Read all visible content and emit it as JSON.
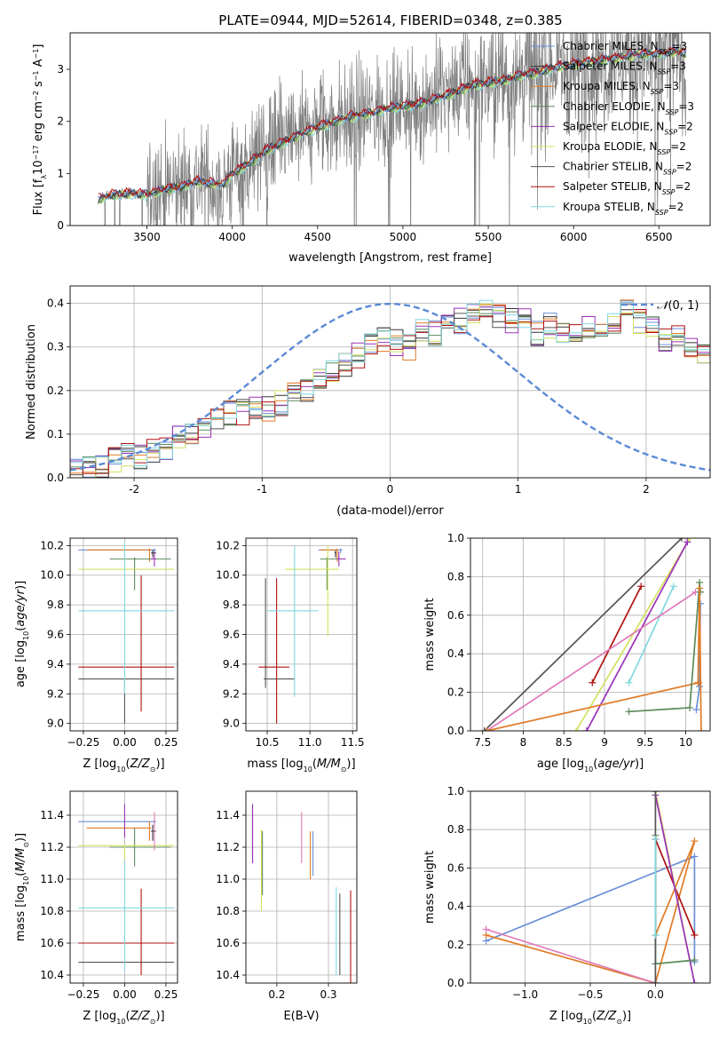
{
  "figure_title": "PLATE=0944, MJD=52614, FIBERID=0348, z=0.385",
  "palette": {
    "chabrier_miles": "#6a8fd8",
    "salpeter_miles": "#333333",
    "kroupa_miles": "#e07b26",
    "chabrier_elodie": "#5c8a5c",
    "salpeter_elodie": "#9a32b8",
    "kroupa_elodie": "#d4e060",
    "chabrier_stelib": "#555555",
    "salpeter_stelib": "#b01010",
    "kroupa_stelib": "#80d8e0",
    "pink": "#e07ab8",
    "data": "#808080",
    "normal": "#5b8ad6"
  },
  "legend_entries": [
    "Chabrier MILES, N_SSP=3",
    "Salpeter MILES, N_SSP=3",
    "Kroupa MILES, N_SSP=3",
    "Chabrier ELODIE, N_SSP=3",
    "Salpeter ELODIE, N_SSP=2",
    "Kroupa ELODIE, N_SSP=2",
    "Chabrier STELIB, N_SSP=2",
    "Salpeter STELIB, N_SSP=2",
    "Kroupa STELIB, N_SSP=2"
  ],
  "chart_data": [
    {
      "id": "spectrum",
      "type": "line",
      "xlabel": "wavelength [Angstrom, rest frame]",
      "ylabel": "Flux [f_λ 10^-17 erg cm^-2 s^-1 A^-1]",
      "xlim": [
        3050,
        6800
      ],
      "ylim": [
        0,
        3.7
      ],
      "xticks": [
        3500,
        4000,
        4500,
        5000,
        5500,
        6000,
        6500
      ],
      "yticks": [
        0,
        1,
        2,
        3
      ],
      "legend_loc": "upper right",
      "model_knots": {
        "x": [
          3210,
          3300,
          3400,
          3500,
          3600,
          3700,
          3800,
          3900,
          3950,
          4000,
          4100,
          4200,
          4300,
          4400,
          4500,
          4600,
          4700,
          4800,
          4900,
          5000,
          5100,
          5200,
          5300,
          5400,
          5500,
          5600,
          5700,
          5800,
          5900,
          6000,
          6100,
          6200,
          6300,
          6400,
          6500,
          6600,
          6660
        ],
        "y": [
          0.5,
          0.6,
          0.62,
          0.6,
          0.7,
          0.75,
          0.85,
          0.8,
          0.8,
          1.0,
          1.2,
          1.45,
          1.6,
          1.75,
          1.9,
          2.0,
          2.1,
          2.15,
          2.25,
          2.3,
          2.35,
          2.45,
          2.55,
          2.7,
          2.75,
          2.8,
          2.9,
          2.95,
          3.05,
          3.1,
          3.15,
          3.2,
          3.25,
          3.3,
          3.3,
          3.35,
          3.3
        ]
      }
    },
    {
      "id": "residual_hist",
      "type": "step",
      "xlabel": "(data-model)/error",
      "ylabel": "Normed distribution",
      "xlim": [
        -2.5,
        2.5
      ],
      "ylim": [
        0,
        0.44
      ],
      "xticks": [
        -2,
        -1,
        0,
        1,
        2
      ],
      "yticks": [
        0.0,
        0.1,
        0.2,
        0.3,
        0.4
      ],
      "legend_label": "N(0,1)",
      "legend_loc": "upper right",
      "bin_width": 0.1,
      "bin_start": -2.5,
      "base_values": [
        0.02,
        0.02,
        0.03,
        0.04,
        0.05,
        0.05,
        0.06,
        0.07,
        0.09,
        0.1,
        0.12,
        0.14,
        0.15,
        0.15,
        0.16,
        0.16,
        0.17,
        0.19,
        0.2,
        0.22,
        0.24,
        0.26,
        0.28,
        0.3,
        0.32,
        0.31,
        0.3,
        0.34,
        0.33,
        0.35,
        0.36,
        0.37,
        0.38,
        0.37,
        0.36,
        0.37,
        0.33,
        0.35,
        0.34,
        0.33,
        0.35,
        0.33,
        0.36,
        0.38,
        0.36,
        0.34,
        0.32,
        0.33,
        0.3,
        0.28,
        0.27,
        0.26,
        0.24,
        0.23,
        0.22,
        0.21,
        0.22,
        0.21,
        0.2,
        0.2,
        0.22,
        0.21,
        0.19,
        0.18,
        0.15,
        0.13,
        0.12,
        0.11,
        0.1,
        0.09,
        0.08,
        0.07,
        0.06,
        0.06,
        0.05
      ]
    },
    {
      "id": "age_vs_Z",
      "type": "errorbar",
      "xlabel": "Z [log10(Z/Z⊙)]",
      "ylabel": "age  [log10(age/yr)]",
      "xlim": [
        -0.33,
        0.32
      ],
      "ylim": [
        8.95,
        10.25
      ],
      "xticks": [
        -0.25,
        0.0,
        0.25
      ],
      "ytick_labels": [
        "9.0",
        "9.2",
        "9.4",
        "9.6",
        "9.8",
        "10.0",
        "10.2"
      ],
      "points": [
        {
          "x": 0.18,
          "xerr": [
            0.46,
            0.01
          ],
          "y": 10.17,
          "yerr": [
            0.02,
            0.01
          ],
          "c": "chabrier_miles"
        },
        {
          "x": 0.17,
          "xerr": [
            0.01,
            0.02
          ],
          "y": 10.15,
          "yerr": [
            0.03,
            0.02
          ],
          "c": "salpeter_miles"
        },
        {
          "x": 0.15,
          "xerr": [
            0.38,
            0.01
          ],
          "y": 10.17,
          "yerr": [
            0.08,
            0.01
          ],
          "c": "kroupa_miles"
        },
        {
          "x": 0.06,
          "xerr": [
            0.15,
            0.22
          ],
          "y": 10.11,
          "yerr": [
            0.21,
            0.01
          ],
          "c": "chabrier_elodie"
        },
        {
          "x": 0.18,
          "xerr": [
            0.02,
            0.01
          ],
          "y": 10.11,
          "yerr": [
            0.05,
            0.05
          ],
          "c": "salpeter_elodie"
        },
        {
          "x": 0.0,
          "xerr": [
            0.28,
            0.3
          ],
          "y": 10.04,
          "yerr": [
            0.0,
            0.16
          ],
          "c": "kroupa_elodie"
        },
        {
          "x": 0.0,
          "xerr": [
            0.28,
            0.3
          ],
          "y": 9.3,
          "yerr": [
            0.3,
            0.0
          ],
          "c": "chabrier_stelib"
        },
        {
          "x": 0.1,
          "xerr": [
            0.38,
            0.2
          ],
          "y": 9.38,
          "yerr": [
            0.3,
            0.62
          ],
          "c": "salpeter_stelib"
        },
        {
          "x": 0.0,
          "xerr": [
            0.28,
            0.3
          ],
          "y": 9.76,
          "yerr": [
            0.56,
            0.46
          ],
          "c": "kroupa_stelib"
        }
      ]
    },
    {
      "id": "age_vs_mass",
      "type": "errorbar",
      "xlabel": "mass [log10(M/M⊙)]",
      "xlim": [
        10.25,
        11.55
      ],
      "ylim": [
        8.95,
        10.25
      ],
      "xticks": [
        10.5,
        11.0,
        11.5
      ],
      "ytick_labels": [
        "9.0",
        "9.2",
        "9.4",
        "9.6",
        "9.8",
        "10.0",
        "10.2"
      ],
      "points": [
        {
          "x": 11.36,
          "xerr": [
            0.26,
            0.02
          ],
          "y": 10.17,
          "yerr": [
            0.02,
            0.01
          ],
          "c": "chabrier_miles"
        },
        {
          "x": 11.3,
          "xerr": [
            0.01,
            0.01
          ],
          "y": 10.15,
          "yerr": [
            0.03,
            0.02
          ],
          "c": "salpeter_miles"
        },
        {
          "x": 11.32,
          "xerr": [
            0.2,
            0.01
          ],
          "y": 10.17,
          "yerr": [
            0.08,
            0.01
          ],
          "c": "kroupa_miles"
        },
        {
          "x": 11.2,
          "xerr": [
            0.08,
            0.15
          ],
          "y": 10.11,
          "yerr": [
            0.21,
            0.01
          ],
          "c": "chabrier_elodie"
        },
        {
          "x": 11.34,
          "xerr": [
            0.02,
            0.08
          ],
          "y": 10.11,
          "yerr": [
            0.05,
            0.05
          ],
          "c": "salpeter_elodie"
        },
        {
          "x": 11.21,
          "xerr": [
            0.5,
            0.13
          ],
          "y": 10.04,
          "yerr": [
            0.45,
            0.16
          ],
          "c": "kroupa_elodie"
        },
        {
          "x": 10.48,
          "xerr": [
            0.02,
            0.34
          ],
          "y": 9.3,
          "yerr": [
            0.06,
            0.68
          ],
          "c": "chabrier_stelib"
        },
        {
          "x": 10.61,
          "xerr": [
            0.21,
            0.15
          ],
          "y": 9.38,
          "yerr": [
            0.38,
            0.6
          ],
          "c": "salpeter_stelib"
        },
        {
          "x": 10.82,
          "xerr": [
            0.32,
            0.28
          ],
          "y": 9.76,
          "yerr": [
            0.58,
            0.44
          ],
          "c": "kroupa_stelib"
        }
      ]
    },
    {
      "id": "weight_vs_age",
      "type": "line",
      "xlabel": "age  [log10(age/yr)]",
      "ylabel": "mass weight",
      "xlim": [
        7.35,
        10.3
      ],
      "ylim": [
        0.0,
        1.0
      ],
      "xticks": [
        7.5,
        8.0,
        8.5,
        9.0,
        9.5,
        10.0
      ],
      "ytick_labels": [
        "0.0",
        "0.2",
        "0.4",
        "0.6",
        "0.8",
        "1.0"
      ],
      "series": [
        {
          "c": "chabrier_stelib",
          "x": [
            7.52,
            9.95
          ],
          "y": [
            0.0,
            1.0
          ]
        },
        {
          "c": "salpeter_stelib",
          "x": [
            8.85,
            9.45
          ],
          "y": [
            0.25,
            0.75
          ]
        },
        {
          "c": "kroupa_elodie",
          "x": [
            8.65,
            10.05
          ],
          "y": [
            0.0,
            1.0
          ]
        },
        {
          "c": "salpeter_elodie",
          "x": [
            8.78,
            10.02
          ],
          "y": [
            0.0,
            0.98
          ]
        },
        {
          "c": "kroupa_stelib",
          "x": [
            9.3,
            9.85
          ],
          "y": [
            0.25,
            0.75
          ]
        },
        {
          "c": "pink",
          "x": [
            7.55,
            10.12
          ],
          "y": [
            0.0,
            0.72
          ]
        },
        {
          "c": "kroupa_miles",
          "x": [
            7.55,
            10.16
          ],
          "y": [
            0.0,
            0.25
          ]
        },
        {
          "c": "chabrier_miles",
          "x": [
            10.13,
            10.17,
            10.18
          ],
          "y": [
            0.11,
            0.23,
            0.66
          ]
        },
        {
          "c": "chabrier_elodie",
          "x": [
            9.3,
            10.05,
            10.17,
            10.18
          ],
          "y": [
            0.1,
            0.12,
            0.77,
            0.72
          ]
        },
        {
          "c": "kroupa_miles",
          "x": [
            10.15,
            10.17,
            10.19
          ],
          "y": [
            0.25,
            0.74,
            0.0
          ]
        }
      ]
    },
    {
      "id": "mass_vs_Z",
      "type": "errorbar",
      "xlabel": "Z [log10(Z/Z⊙)]",
      "ylabel": "mass [log10(M/M⊙)]",
      "xlim": [
        -0.33,
        0.32
      ],
      "ylim": [
        10.35,
        11.55
      ],
      "xticks": [
        -0.25,
        0.0,
        0.25
      ],
      "ytick_labels": [
        "10.4",
        "10.6",
        "10.8",
        "11.0",
        "11.2",
        "11.4"
      ],
      "points": [
        {
          "x": 0.18,
          "xerr": [
            0.46,
            0.01
          ],
          "y": 11.36,
          "yerr": [
            0.02,
            0.02
          ],
          "c": "chabrier_miles"
        },
        {
          "x": 0.17,
          "xerr": [
            0.01,
            0.02
          ],
          "y": 11.3,
          "yerr": [
            0.06,
            0.04
          ],
          "c": "salpeter_miles"
        },
        {
          "x": 0.15,
          "xerr": [
            0.38,
            0.01
          ],
          "y": 11.32,
          "yerr": [
            0.08,
            0.04
          ],
          "c": "kroupa_miles"
        },
        {
          "x": 0.06,
          "xerr": [
            0.15,
            0.22
          ],
          "y": 11.2,
          "yerr": [
            0.12,
            0.12
          ],
          "c": "chabrier_elodie"
        },
        {
          "x": 0.0,
          "xerr": [
            0.0,
            0.0
          ],
          "y": 11.34,
          "yerr": [
            0.08,
            0.13
          ],
          "c": "salpeter_elodie"
        },
        {
          "x": 0.0,
          "xerr": [
            0.28,
            0.3
          ],
          "y": 11.21,
          "yerr": [
            0.3,
            0.0
          ],
          "c": "kroupa_elodie"
        },
        {
          "x": 0.0,
          "xerr": [
            0.28,
            0.3
          ],
          "y": 10.48,
          "yerr": [
            0.0,
            0.0
          ],
          "c": "chabrier_stelib"
        },
        {
          "x": 0.1,
          "xerr": [
            0.38,
            0.2
          ],
          "y": 10.6,
          "yerr": [
            0.2,
            0.34
          ],
          "c": "salpeter_stelib"
        },
        {
          "x": 0.0,
          "xerr": [
            0.28,
            0.3
          ],
          "y": 10.82,
          "yerr": [
            0.4,
            0.3
          ],
          "c": "kroupa_stelib"
        },
        {
          "x": 0.18,
          "xerr": [
            0.0,
            0.0
          ],
          "y": 11.3,
          "yerr": [
            0.12,
            0.12
          ],
          "c": "pink"
        }
      ]
    },
    {
      "id": "mass_vs_ebv",
      "type": "errorbar",
      "xlabel": "E(B-V)",
      "xlim": [
        0.14,
        0.355
      ],
      "ylim": [
        10.35,
        11.55
      ],
      "xticks": [
        0.2,
        0.3
      ],
      "ytick_labels": [
        "10.4",
        "10.6",
        "10.8",
        "11.0",
        "11.2",
        "11.4"
      ],
      "points": [
        {
          "x": 0.153,
          "y": 11.28,
          "yerr": [
            0.18,
            0.19
          ],
          "c": "salpeter_elodie"
        },
        {
          "x": 0.17,
          "y": 11.05,
          "yerr": [
            0.25,
            0.26
          ],
          "c": "kroupa_elodie"
        },
        {
          "x": 0.172,
          "y": 11.1,
          "yerr": [
            0.2,
            0.2
          ],
          "c": "chabrier_elodie"
        },
        {
          "x": 0.248,
          "y": 11.2,
          "yerr": [
            0.1,
            0.22
          ],
          "c": "pink"
        },
        {
          "x": 0.265,
          "y": 11.15,
          "yerr": [
            0.15,
            0.15
          ],
          "c": "kroupa_miles"
        },
        {
          "x": 0.27,
          "y": 11.2,
          "yerr": [
            0.18,
            0.1
          ],
          "c": "chabrier_miles"
        },
        {
          "x": 0.315,
          "y": 10.85,
          "yerr": [
            0.45,
            0.1
          ],
          "c": "kroupa_stelib"
        },
        {
          "x": 0.322,
          "y": 10.63,
          "yerr": [
            0.23,
            0.28
          ],
          "c": "chabrier_stelib"
        },
        {
          "x": 0.343,
          "y": 10.6,
          "yerr": [
            0.25,
            0.33
          ],
          "c": "salpeter_stelib"
        }
      ]
    },
    {
      "id": "weight_vs_Z",
      "type": "line",
      "xlabel": "Z [log10(Z/Z⊙)]",
      "ylabel": "mass weight",
      "xlim": [
        -1.42,
        0.42
      ],
      "ylim": [
        0.0,
        1.0
      ],
      "xticks": [
        -1.0,
        -0.5,
        0.0
      ],
      "ytick_labels": [
        "0.0",
        "0.2",
        "0.4",
        "0.6",
        "0.8",
        "1.0"
      ],
      "series": [
        {
          "c": "chabrier_miles",
          "x": [
            -1.3,
            0.3,
            0.3
          ],
          "y": [
            0.22,
            0.66,
            0.11
          ]
        },
        {
          "c": "kroupa_miles",
          "x": [
            -1.3,
            0.0,
            0.3,
            0.0
          ],
          "y": [
            0.25,
            0.0,
            0.74,
            0.25
          ]
        },
        {
          "c": "pink",
          "x": [
            -1.3,
            0.0
          ],
          "y": [
            0.28,
            0.0
          ]
        },
        {
          "c": "salpeter_stelib",
          "x": [
            0.0,
            0.3
          ],
          "y": [
            0.75,
            0.25
          ]
        },
        {
          "c": "kroupa_elodie",
          "x": [
            0.0,
            0.3
          ],
          "y": [
            1.0,
            0.0
          ]
        },
        {
          "c": "salpeter_elodie",
          "x": [
            0.0,
            0.3
          ],
          "y": [
            0.98,
            0.0
          ]
        },
        {
          "c": "chabrier_elodie",
          "x": [
            0.0,
            0.0,
            0.3
          ],
          "y": [
            0.77,
            0.1,
            0.12
          ]
        },
        {
          "c": "chabrier_stelib",
          "x": [
            0.0,
            0.0
          ],
          "y": [
            1.0,
            0.0
          ]
        },
        {
          "c": "kroupa_stelib",
          "x": [
            0.0,
            0.0
          ],
          "y": [
            0.75,
            0.25
          ]
        }
      ]
    }
  ]
}
